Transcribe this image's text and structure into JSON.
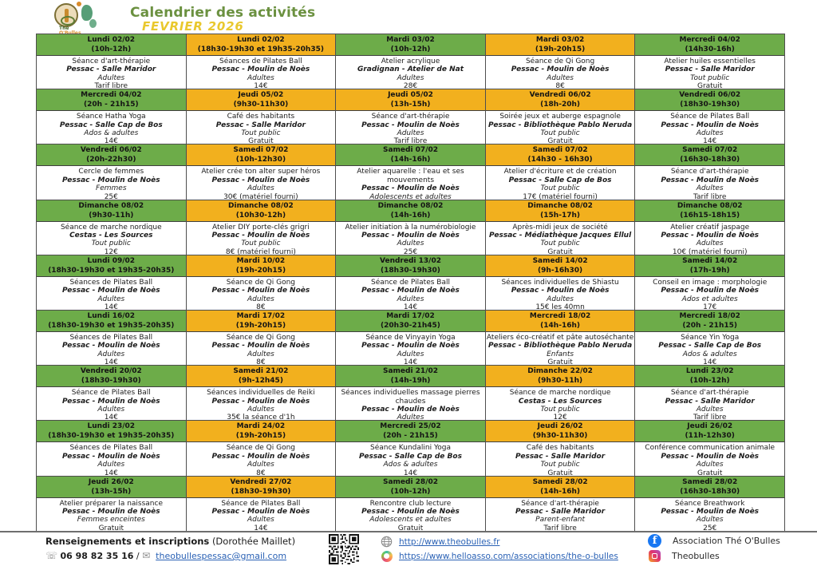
{
  "header": {
    "logo_line1": "Thé",
    "logo_line2": "O'Bulles",
    "title": "Calendrier des activités",
    "subtitle": "FEVRIER 2026"
  },
  "colors": {
    "green": "#6dac49",
    "yellow": "#f2b01e",
    "title_green": "#6b9140",
    "subtitle_yellow": "#e9c82e",
    "link_blue": "#2b62b5"
  },
  "calendar": {
    "rows": [
      [
        {
          "date": "Lundi 02/02",
          "time": "(10h-12h)",
          "color": "green",
          "activity": "Séance d'art-thérapie",
          "place": "Pessac - Salle Maridor",
          "audience": "Adultes",
          "price": "Tarif libre"
        },
        {
          "date": "Lundi 02/02",
          "time": "(18h30-19h30 et 19h35-20h35)",
          "color": "yellow",
          "activity": "Séances de Pilates Ball",
          "place": "Pessac - Moulin de Noès",
          "audience": "Adultes",
          "price": "14€"
        },
        {
          "date": "Mardi 03/02",
          "time": "(10h-12h)",
          "color": "green",
          "activity": "Atelier acrylique",
          "place": "Gradignan - Atelier de Nat",
          "audience": "Adultes",
          "price": "28€"
        },
        {
          "date": "Mardi 03/02",
          "time": "(19h-20h15)",
          "color": "yellow",
          "activity": "Séance de Qi Gong",
          "place": "Pessac - Moulin de Noès",
          "audience": "Adultes",
          "price": "8€"
        },
        {
          "date": "Mercredi 04/02",
          "time": "(14h30-16h)",
          "color": "green",
          "activity": "Atelier huiles essentielles",
          "place": "Pessac - Salle Maridor",
          "audience": "Tout public",
          "price": "Gratuit"
        }
      ],
      [
        {
          "date": "Mercredi 04/02",
          "time": "(20h - 21h15)",
          "color": "green",
          "activity": "Séance Hatha Yoga",
          "place": "Pessac - Salle Cap de Bos",
          "audience": "Ados & adultes",
          "price": "14€"
        },
        {
          "date": "Jeudi 05/02",
          "time": "(9h30-11h30)",
          "color": "yellow",
          "activity": "Café des habitants",
          "place": "Pessac - Salle Maridor",
          "audience": "Tout public",
          "price": "Gratuit"
        },
        {
          "date": "Jeudi 05/02",
          "time": "(13h-15h)",
          "color": "yellow",
          "activity": "Séance d'art-thérapie",
          "place": "Pessac - Moulin de Noès",
          "audience": "Adultes",
          "price": "Tarif libre"
        },
        {
          "date": "Vendredi 06/02",
          "time": "(18h-20h)",
          "color": "yellow",
          "activity": "Soirée jeux et auberge espagnole",
          "place": "Pessac - Bibliothèque Pablo Neruda",
          "audience": "Tout public",
          "price": "Gratuit"
        },
        {
          "date": "Vendredi 06/02",
          "time": "(18h30-19h30)",
          "color": "green",
          "activity": "Séance de Pilates Ball",
          "place": "Pessac - Moulin de Noès",
          "audience": "Adultes",
          "price": "14€"
        }
      ],
      [
        {
          "date": "Vendredi 06/02",
          "time": "(20h-22h30)",
          "color": "green",
          "activity": "Cercle de femmes",
          "place": "Pessac - Moulin de Noès",
          "audience": "Femmes",
          "price": "25€"
        },
        {
          "date": "Samedi 07/02",
          "time": "(10h-12h30)",
          "color": "yellow",
          "activity": "Atelier crée ton alter super héros",
          "place": "Pessac - Moulin de Noès",
          "audience": "Adultes",
          "price": "30€ (matériel fourni)"
        },
        {
          "date": "Samedi 07/02",
          "time": "(14h-16h)",
          "color": "green",
          "activity": "Atelier aquarelle : l'eau et ses mouvements",
          "place": "Pessac - Moulin de Noès",
          "audience": "Adolescents et adultes",
          "price": "25€ (matériel fourni)"
        },
        {
          "date": "Samedi 07/02",
          "time": "(14h30 - 16h30)",
          "color": "yellow",
          "activity": "Atelier d'écriture et de création",
          "place": "Pessac - Salle Cap de Bos",
          "audience": "Tout public",
          "price": "17€ (matériel fourni)"
        },
        {
          "date": "Samedi 07/02",
          "time": "(16h30-18h30)",
          "color": "green",
          "activity": "Séance d'art-thérapie",
          "place": "Pessac - Moulin de Noès",
          "audience": "Adultes",
          "price": "Tarif libre"
        }
      ],
      [
        {
          "date": "Dimanche 08/02",
          "time": "(9h30-11h)",
          "color": "green",
          "activity": "Séance de marche nordique",
          "place": "Cestas - Les Sources",
          "audience": "Tout public",
          "price": "12€"
        },
        {
          "date": "Dimanche 08/02",
          "time": "(10h30-12h)",
          "color": "yellow",
          "activity": "Atelier DIY porte-clés grigri",
          "place": "Pessac - Moulin de Noès",
          "audience": "Tout public",
          "price": "8€ (matériel fourni)"
        },
        {
          "date": "Dimanche 08/02",
          "time": "(14h-16h)",
          "color": "green",
          "activity": "Atelier initiation à la numérobiologie",
          "place": "Pessac - Moulin de Noès",
          "audience": "Adultes",
          "price": "25€"
        },
        {
          "date": "Dimanche 08/02",
          "time": "(15h-17h)",
          "color": "yellow",
          "activity": "Après-midi jeux de société",
          "place": "Pessac - Médiathèque Jacques Ellul",
          "audience": "Tout public",
          "price": "Gratuit"
        },
        {
          "date": "Dimanche 08/02",
          "time": "(16h15-18h15)",
          "color": "green",
          "activity": "Atelier créatif jaspage",
          "place": "Pessac - Moulin de Noès",
          "audience": "Adultes",
          "price": "10€ (matériel fourni)"
        }
      ],
      [
        {
          "date": "Lundi 09/02",
          "time": "(18h30-19h30 et 19h35-20h35)",
          "color": "green",
          "activity": "Séances de Pilates Ball",
          "place": "Pessac - Moulin de Noès",
          "audience": "Adultes",
          "price": "14€"
        },
        {
          "date": "Mardi 10/02",
          "time": "(19h-20h15)",
          "color": "yellow",
          "activity": "Séance de Qi Gong",
          "place": "Pessac - Moulin de Noès",
          "audience": "Adultes",
          "price": "8€"
        },
        {
          "date": "Vendredi 13/02",
          "time": "(18h30-19h30)",
          "color": "green",
          "activity": "Séance de Pilates Ball",
          "place": "Pessac - Moulin de Noès",
          "audience": "Adultes",
          "price": "14€"
        },
        {
          "date": "Samedi 14/02",
          "time": "(9h-16h30)",
          "color": "yellow",
          "activity": "Séances individuelles de Shiastu",
          "place": "Pessac - Moulin de Noès",
          "audience": "Adultes",
          "price": "15€ les 40mn"
        },
        {
          "date": "Samedi 14/02",
          "time": "(17h-19h)",
          "color": "green",
          "activity": "Conseil en image : morphologie",
          "place": "Pessac - Moulin de Noès",
          "audience": "Ados et adultes",
          "price": "17€"
        }
      ],
      [
        {
          "date": "Lundi 16/02",
          "time": "(18h30-19h30 et 19h35-20h35)",
          "color": "green",
          "activity": "Séances de Pilates Ball",
          "place": "Pessac - Moulin de Noès",
          "audience": "Adultes",
          "price": "14€"
        },
        {
          "date": "Mardi 17/02",
          "time": "(19h-20h15)",
          "color": "yellow",
          "activity": "Séance de Qi Gong",
          "place": "Pessac - Moulin de Noès",
          "audience": "Adultes",
          "price": "8€"
        },
        {
          "date": "Mardi 17/02",
          "time": "(20h30-21h45)",
          "color": "green",
          "activity": "Séance de Vinyayin Yoga",
          "place": "Pessac - Moulin de Noès",
          "audience": "Adultes",
          "price": "14€"
        },
        {
          "date": "Mercredi 18/02",
          "time": "(14h-16h)",
          "color": "yellow",
          "activity": "Ateliers éco-créatif et pâte autoséchante",
          "place": "Pessac - Bibliothèque Pablo Neruda",
          "audience": "Enfants",
          "price": "Gratuit"
        },
        {
          "date": "Mercredi 18/02",
          "time": "(20h - 21h15)",
          "color": "green",
          "activity": "Séance Yin Yoga",
          "place": "Pessac - Salle Cap de Bos",
          "audience": "Ados & adultes",
          "price": "14€"
        }
      ],
      [
        {
          "date": "Vendredi 20/02",
          "time": "(18h30-19h30)",
          "color": "green",
          "activity": "Séance de Pilates Ball",
          "place": "Pessac - Moulin de Noès",
          "audience": "Adultes",
          "price": "14€"
        },
        {
          "date": "Samedi 21/02",
          "time": "(9h-12h45)",
          "color": "yellow",
          "activity": "Séances individuelles de Reiki",
          "place": "Pessac - Moulin de Noès",
          "audience": "Adultes",
          "price": "35€ la séance d'1h"
        },
        {
          "date": "Samedi 21/02",
          "time": "(14h-19h)",
          "color": "green",
          "activity": "Séances individuelles massage pierres chaudes",
          "place": "Pessac - Moulin de Noès",
          "audience": "Adultes",
          "price": "60€ la séance d'1h"
        },
        {
          "date": "Dimanche 22/02",
          "time": "(9h30-11h)",
          "color": "yellow",
          "activity": "Séance de marche nordique",
          "place": "Cestas - Les Sources",
          "audience": "Tout public",
          "price": "12€"
        },
        {
          "date": "Lundi 23/02",
          "time": "(10h-12h)",
          "color": "green",
          "activity": "Séance d'art-thérapie",
          "place": "Pessac - Salle Maridor",
          "audience": "Adultes",
          "price": "Tarif libre"
        }
      ],
      [
        {
          "date": "Lundi 23/02",
          "time": "(18h30-19h30 et 19h35-20h35)",
          "color": "green",
          "activity": "Séances de Pilates Ball",
          "place": "Pessac - Moulin de Noès",
          "audience": "Adultes",
          "price": "14€"
        },
        {
          "date": "Mardi 24/02",
          "time": "(19h-20h15)",
          "color": "yellow",
          "activity": "Séance de Qi Gong",
          "place": "Pessac - Moulin de Noès",
          "audience": "Adultes",
          "price": "8€"
        },
        {
          "date": "Mercredi 25/02",
          "time": "(20h - 21h15)",
          "color": "green",
          "activity": "Séance Kundalini Yoga",
          "place": "Pessac - Salle Cap de Bos",
          "audience": "Ados & adultes",
          "price": "14€"
        },
        {
          "date": "Jeudi 26/02",
          "time": "(9h30-11h30)",
          "color": "yellow",
          "activity": "Café des habitants",
          "place": "Pessac - Salle Maridor",
          "audience": "Tout public",
          "price": "Gratuit"
        },
        {
          "date": "Jeudi 26/02",
          "time": "(11h-12h30)",
          "color": "green",
          "activity": "Conférence communication animale",
          "place": "Pessac - Moulin de Noès",
          "audience": "Adultes",
          "price": "Gratuit"
        }
      ],
      [
        {
          "date": "Jeudi 26/02",
          "time": "(13h-15h)",
          "color": "green",
          "activity": "Atelier préparer la naissance",
          "place": "Pessac - Moulin de Noès",
          "audience": "Femmes enceintes",
          "price": "Gratuit"
        },
        {
          "date": "Vendredi 27/02",
          "time": "(18h30-19h30)",
          "color": "yellow",
          "activity": "Séance de Pilates Ball",
          "place": "Pessac - Moulin de Noès",
          "audience": "Adultes",
          "price": "14€"
        },
        {
          "date": "Samedi 28/02",
          "time": "(10h-12h)",
          "color": "green",
          "activity": "Rencontre club lecture",
          "place": "Pessac - Moulin de Noès",
          "audience": "Adolescents et adultes",
          "price": "Gratuit"
        },
        {
          "date": "Samedi 28/02",
          "time": "(14h-16h)",
          "color": "yellow",
          "activity": "Séance d'art-thérapie",
          "place": "Pessac - Salle Maridor",
          "audience": "Parent-enfant",
          "price": "Tarif libre"
        },
        {
          "date": "Samedi 28/02",
          "time": "(16h30-18h30)",
          "color": "green",
          "activity": "Séance Breathwork",
          "place": "Pessac - Moulin de Noès",
          "audience": "Adultes",
          "price": "25€"
        }
      ]
    ]
  },
  "footer": {
    "contact_title": "Renseignements et inscriptions",
    "contact_name": "(Dorothée Maillet)",
    "phone_icon": "☏",
    "phone": "06 98 82 35 16",
    "separator": "/",
    "mail_icon": "✉",
    "email": "theobullespessac@gmail.com",
    "website": "http://www.theobulles.fr",
    "helloasso_url": "https://www.helloasso.com/associations/the-o-bulles",
    "facebook_label": "Association Thé O'Bulles",
    "instagram_label": "Theobulles"
  }
}
